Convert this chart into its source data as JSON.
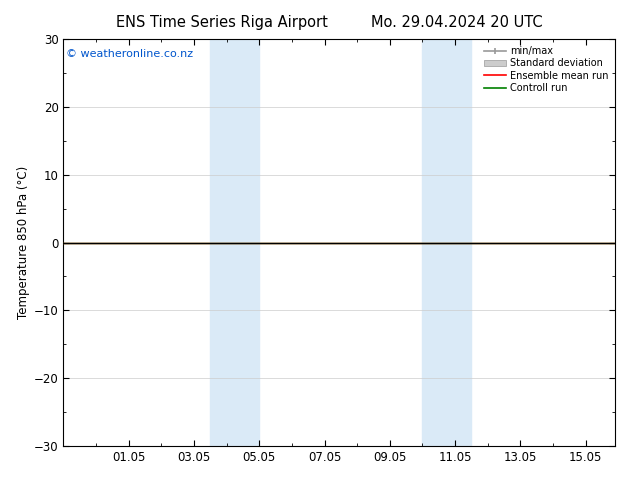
{
  "title_left": "ENS Time Series Riga Airport",
  "title_right": "Mo. 29.04.2024 20 UTC",
  "ylabel": "Temperature 850 hPa (°C)",
  "watermark": "© weatheronline.co.nz",
  "ylim": [
    -30,
    30
  ],
  "yticks": [
    -30,
    -20,
    -10,
    0,
    10,
    20,
    30
  ],
  "bg_color": "#ffffff",
  "plot_bg_color": "#ffffff",
  "shaded_bands": [
    {
      "x_start": 4.5,
      "x_end": 6.0,
      "color": "#daeaf7"
    },
    {
      "x_start": 11.0,
      "x_end": 12.5,
      "color": "#daeaf7"
    }
  ],
  "xtick_labels": [
    "01.05",
    "03.05",
    "05.05",
    "07.05",
    "09.05",
    "11.05",
    "13.05",
    "15.05"
  ],
  "xtick_positions": [
    2,
    4,
    6,
    8,
    10,
    12,
    14,
    16
  ],
  "xlim": [
    0.0,
    16.9
  ],
  "zero_line_color": "black",
  "control_run_color": "#008000",
  "ensemble_mean_color": "#ff0000",
  "minmax_color": "#999999",
  "stddev_color": "#cccccc",
  "legend_labels": [
    "min/max",
    "Standard deviation",
    "Ensemble mean run",
    "Controll run"
  ],
  "font_size": 8.5,
  "title_font_size": 10.5
}
